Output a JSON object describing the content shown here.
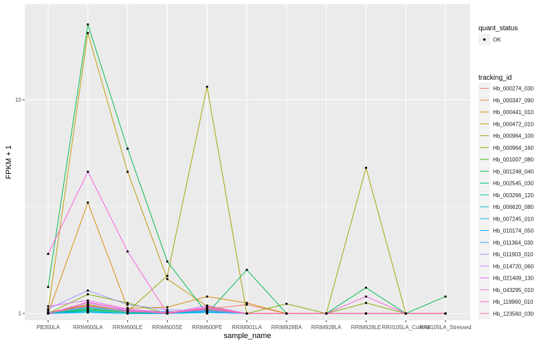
{
  "chart_data": {
    "type": "line",
    "xlabel": "sample_name",
    "ylabel": "FPKM + 1",
    "y_scale": "log10",
    "ylim": [
      0.93,
      28
    ],
    "y_ticks": [
      1,
      10
    ],
    "y_tick_labels": [
      "1",
      "10"
    ],
    "grid": true,
    "legend_position": "right",
    "categories": [
      "PB350LA",
      "RRIM600LA",
      "RRIM600LE",
      "RRIM600SE",
      "RRIM600PE",
      "RRIM901LA",
      "RRIM928BA",
      "RRIM928LA",
      "RRIM928LE",
      "RRII105LA_Control",
      "RRII105LA_Stressed"
    ],
    "quant_status_legend": {
      "title": "quant_status",
      "entries": [
        "OK"
      ]
    },
    "tracking_legend_title": "tracking_id",
    "series": [
      {
        "name": "Hb_000274_030",
        "color": "#F8766D",
        "values": [
          1.0,
          1.08,
          1.03,
          1.01,
          1.05,
          1.1,
          1.0,
          1.0,
          1.0,
          1.0,
          1.0
        ]
      },
      {
        "name": "Hb_000347_090",
        "color": "#EA8331",
        "values": [
          1.01,
          1.1,
          1.02,
          1.0,
          1.06,
          1.0,
          1.0,
          1.0,
          1.0,
          1.0,
          1.0
        ]
      },
      {
        "name": "Hb_000441_010",
        "color": "#D89000",
        "values": [
          1.0,
          3.3,
          1.06,
          1.07,
          1.2,
          1.12,
          1.0,
          1.0,
          1.0,
          1.0,
          1.0
        ]
      },
      {
        "name": "Hb_000472_010",
        "color": "#C09B00",
        "values": [
          1.03,
          20.5,
          4.6,
          1.45,
          1.08,
          1.0,
          1.0,
          1.0,
          1.0,
          1.0,
          1.0
        ]
      },
      {
        "name": "Hb_000964_100",
        "color": "#A3A500",
        "values": [
          1.0,
          1.1,
          1.02,
          1.5,
          11.5,
          1.0,
          1.0,
          1.0,
          4.8,
          1.0,
          1.0
        ]
      },
      {
        "name": "Hb_000964_160",
        "color": "#7CAE00",
        "values": [
          1.0,
          1.23,
          1.12,
          1.0,
          1.03,
          1.0,
          1.11,
          1.0,
          1.12,
          1.0,
          1.0
        ]
      },
      {
        "name": "Hb_001007_080",
        "color": "#39B600",
        "values": [
          1.0,
          1.05,
          1.01,
          1.0,
          1.02,
          1.0,
          1.0,
          1.0,
          1.0,
          1.0,
          1.0
        ]
      },
      {
        "name": "Hb_001248_040",
        "color": "#00BB4E",
        "values": [
          1.33,
          22.5,
          5.9,
          1.75,
          1.0,
          1.6,
          1.0,
          1.0,
          1.32,
          1.0,
          1.2
        ]
      },
      {
        "name": "Hb_002545_030",
        "color": "#00BF7D",
        "values": [
          1.0,
          1.04,
          1.01,
          1.0,
          1.04,
          1.0,
          1.0,
          1.0,
          1.0,
          1.0,
          1.0
        ]
      },
      {
        "name": "Hb_003266_120",
        "color": "#00C1A3",
        "values": [
          1.0,
          1.03,
          1.0,
          1.0,
          1.01,
          1.0,
          1.0,
          1.0,
          1.0,
          1.0,
          1.0
        ]
      },
      {
        "name": "Hb_006620_080",
        "color": "#00BFC4",
        "values": [
          1.0,
          1.06,
          1.02,
          1.0,
          1.03,
          1.0,
          1.0,
          1.0,
          1.0,
          1.0,
          1.0
        ]
      },
      {
        "name": "Hb_007245_010",
        "color": "#00BAE0",
        "values": [
          1.0,
          1.02,
          1.0,
          1.0,
          1.02,
          1.0,
          1.0,
          1.0,
          1.0,
          1.0,
          1.0
        ]
      },
      {
        "name": "Hb_010174_050",
        "color": "#00B0F6",
        "values": [
          1.0,
          1.01,
          1.0,
          1.0,
          1.01,
          1.0,
          1.0,
          1.0,
          1.0,
          1.0,
          1.0
        ]
      },
      {
        "name": "Hb_011364_030",
        "color": "#35A2FF",
        "values": [
          1.01,
          1.07,
          1.03,
          1.02,
          1.02,
          1.0,
          1.0,
          1.0,
          1.0,
          1.0,
          1.0
        ]
      },
      {
        "name": "Hb_011903_010",
        "color": "#9590FF",
        "values": [
          1.05,
          1.28,
          1.1,
          1.04,
          1.03,
          1.0,
          1.0,
          1.0,
          1.0,
          1.0,
          1.0
        ]
      },
      {
        "name": "Hb_014720_060",
        "color": "#C77CFF",
        "values": [
          1.0,
          1.12,
          1.03,
          1.0,
          1.09,
          1.0,
          1.0,
          1.0,
          1.0,
          1.0,
          1.0
        ]
      },
      {
        "name": "Hb_021409_130",
        "color": "#E76BF3",
        "values": [
          1.08,
          1.15,
          1.05,
          1.01,
          1.06,
          1.0,
          1.0,
          1.0,
          1.0,
          1.0,
          1.0
        ]
      },
      {
        "name": "Hb_043295_010",
        "color": "#FA62DB",
        "values": [
          1.9,
          4.6,
          1.95,
          1.0,
          1.05,
          1.0,
          1.0,
          1.0,
          1.2,
          1.0,
          1.0
        ]
      },
      {
        "name": "Hb_119960_010",
        "color": "#FF62BC",
        "values": [
          1.0,
          1.13,
          1.04,
          1.0,
          1.07,
          1.0,
          1.0,
          1.0,
          1.0,
          1.0,
          1.0
        ]
      },
      {
        "name": "Hb_123560_030",
        "color": "#FF6C91",
        "values": [
          1.0,
          1.09,
          1.02,
          1.01,
          1.05,
          1.0,
          1.0,
          1.0,
          1.0,
          1.0,
          1.0
        ]
      }
    ]
  }
}
